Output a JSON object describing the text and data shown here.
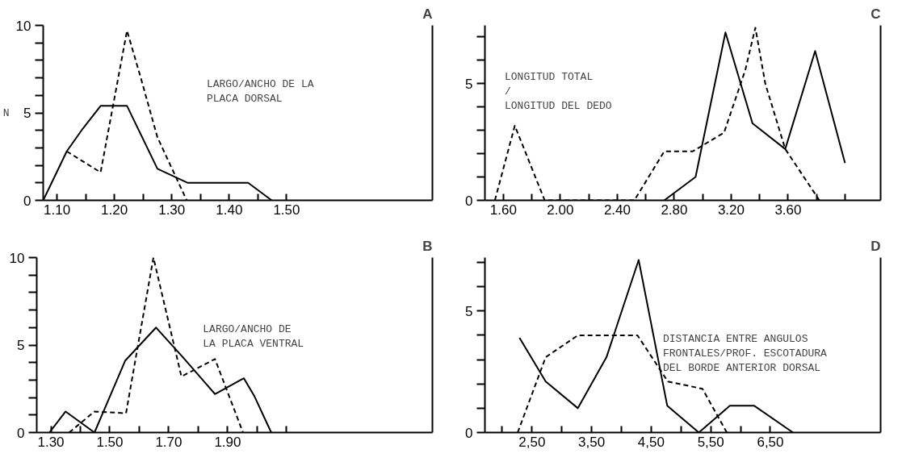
{
  "chart_data": [
    {
      "type": "line",
      "title": "A",
      "ylabel": "N",
      "annotations": [
        "LARGO/ANCHO DE LA\nPLACA DORSAL"
      ],
      "xlim": [
        1.076,
        1.754
      ],
      "ylim": [
        0,
        10
      ],
      "xticks": [
        {
          "value": 1.1,
          "label": "1.10"
        },
        {
          "value": 1.15,
          "label": null
        },
        {
          "value": 1.2,
          "label": "1.20"
        },
        {
          "value": 1.25,
          "label": null
        },
        {
          "value": 1.3,
          "label": "1.30"
        },
        {
          "value": 1.35,
          "label": null
        },
        {
          "value": 1.4,
          "label": "1.40"
        },
        {
          "value": 1.45,
          "label": null
        },
        {
          "value": 1.5,
          "label": "1.50"
        }
      ],
      "yticks": [
        0,
        {
          "value": 1,
          "label": null
        },
        {
          "value": 2,
          "label": null
        },
        {
          "value": 3,
          "label": null
        },
        {
          "value": 4,
          "label": null
        },
        5,
        {
          "value": 6,
          "label": null
        },
        {
          "value": 7,
          "label": null
        },
        {
          "value": 8,
          "label": null
        },
        {
          "value": 9,
          "label": null
        },
        10
      ],
      "grid": false,
      "series": [
        {
          "color": "#000000",
          "line_style": "solid",
          "x": [
            1.076,
            1.117,
            1.145,
            1.176,
            1.222,
            1.275,
            1.328,
            1.433,
            1.474
          ],
          "values": [
            0,
            2.8,
            4.1,
            5.4,
            5.4,
            1.8,
            1.0,
            1.0,
            0
          ]
        },
        {
          "color": "#000000",
          "line_style": "dashed",
          "x": [
            1.117,
            1.176,
            1.222,
            1.246,
            1.275,
            1.326
          ],
          "values": [
            2.8,
            1.6,
            9.7,
            7.0,
            3.6,
            0
          ]
        }
      ]
    },
    {
      "type": "line",
      "title": "C",
      "annotations": [
        "LONGITUD TOTAL\n/\nLONGITUD DEL DEDO"
      ],
      "xlim": [
        1.47,
        4.25
      ],
      "ylim": [
        0,
        7.5
      ],
      "xticks": [
        {
          "value": 1.6,
          "label": "1.60"
        },
        {
          "value": 1.8,
          "label": null
        },
        {
          "value": 2.0,
          "label": "2.00"
        },
        {
          "value": 2.2,
          "label": null
        },
        {
          "value": 2.4,
          "label": "2.40"
        },
        {
          "value": 2.6,
          "label": null
        },
        {
          "value": 2.8,
          "label": "2.80"
        },
        {
          "value": 3.0,
          "label": null
        },
        {
          "value": 3.2,
          "label": "3.20"
        },
        {
          "value": 3.4,
          "label": null
        },
        {
          "value": 3.6,
          "label": "3.60"
        },
        {
          "value": 3.8,
          "label": null
        },
        {
          "value": 4.0,
          "label": null
        }
      ],
      "yticks": [
        0,
        {
          "value": 1,
          "label": null
        },
        {
          "value": 2,
          "label": null
        },
        {
          "value": 3,
          "label": null
        },
        {
          "value": 4,
          "label": null
        },
        5,
        {
          "value": 6,
          "label": null
        },
        {
          "value": 7,
          "label": null
        }
      ],
      "grid": false,
      "series": [
        {
          "color": "#000000",
          "line_style": "solid",
          "x": [
            2.73,
            2.95,
            3.16,
            3.35,
            3.58,
            3.79,
            4.0
          ],
          "values": [
            0,
            1.0,
            7.2,
            3.3,
            2.2,
            6.4,
            1.6
          ]
        },
        {
          "color": "#000000",
          "line_style": "dashed",
          "x": [
            1.54,
            1.68,
            1.89,
            2.52,
            2.73,
            2.93,
            3.15,
            3.3,
            3.37,
            3.44,
            3.58,
            3.82
          ],
          "values": [
            0,
            3.2,
            0,
            0,
            2.1,
            2.1,
            2.9,
            5.6,
            7.4,
            5.0,
            2.2,
            0
          ]
        }
      ]
    },
    {
      "type": "line",
      "title": "B",
      "annotations": [
        "LARGO/ANCHO DE\nLA PLACA VENTRAL"
      ],
      "xlim": [
        1.252,
        2.595
      ],
      "ylim": [
        0,
        10
      ],
      "xticks": [
        {
          "value": 1.3,
          "label": "1.30"
        },
        {
          "value": 1.4,
          "label": null
        },
        {
          "value": 1.5,
          "label": "1.50"
        },
        {
          "value": 1.6,
          "label": null
        },
        {
          "value": 1.7,
          "label": "1.70"
        },
        {
          "value": 1.8,
          "label": null
        },
        {
          "value": 1.9,
          "label": "1.90"
        },
        {
          "value": 2.0,
          "label": null
        },
        {
          "value": 2.1,
          "label": null
        }
      ],
      "yticks": [
        0,
        {
          "value": 1,
          "label": null
        },
        {
          "value": 2,
          "label": null
        },
        {
          "value": 3,
          "label": null
        },
        {
          "value": 4,
          "label": null
        },
        5,
        {
          "value": 6,
          "label": null
        },
        {
          "value": 7,
          "label": null
        },
        {
          "value": 8,
          "label": null
        },
        {
          "value": 9,
          "label": null
        },
        10
      ],
      "grid": false,
      "series": [
        {
          "color": "#000000",
          "line_style": "solid",
          "x": [
            1.295,
            1.35,
            1.448,
            1.552,
            1.657,
            1.748,
            1.857,
            1.955,
            1.99,
            2.048
          ],
          "values": [
            0,
            1.2,
            0,
            4.1,
            6.0,
            4.3,
            2.2,
            3.1,
            2.1,
            0
          ]
        },
        {
          "color": "#000000",
          "line_style": "dashed",
          "x": [
            1.362,
            1.448,
            1.555,
            1.648,
            1.743,
            1.857,
            1.952
          ],
          "values": [
            0,
            1.2,
            1.1,
            10.0,
            3.2,
            4.2,
            0
          ]
        }
      ]
    },
    {
      "type": "line",
      "title": "D",
      "annotations": [
        "DISTANCIA ENTRE ANGULOS\nFRONTALES/PROF. ESCOTADURA\nDEL BORDE ANTERIOR DORSAL"
      ],
      "xlim": [
        1.71,
        8.35
      ],
      "ylim": [
        0,
        7.2
      ],
      "xticks": [
        {
          "value": 2.0,
          "label": null
        },
        {
          "value": 2.5,
          "label": "2,50"
        },
        {
          "value": 3.0,
          "label": null
        },
        {
          "value": 3.5,
          "label": "3,50"
        },
        {
          "value": 4.0,
          "label": null
        },
        {
          "value": 4.5,
          "label": "4,50"
        },
        {
          "value": 5.0,
          "label": null
        },
        {
          "value": 5.5,
          "label": "5,50"
        },
        {
          "value": 6.0,
          "label": null
        },
        {
          "value": 6.5,
          "label": "6,50"
        }
      ],
      "yticks": [
        0,
        {
          "value": 1,
          "label": null
        },
        {
          "value": 2,
          "label": null
        },
        {
          "value": 3,
          "label": null
        },
        {
          "value": 4,
          "label": null
        },
        5,
        {
          "value": 6,
          "label": null
        },
        {
          "value": 7,
          "label": null
        }
      ],
      "grid": false,
      "series": [
        {
          "color": "#000000",
          "line_style": "solid",
          "x": [
            2.29,
            2.73,
            3.27,
            3.75,
            4.29,
            4.77,
            5.3,
            5.82,
            6.23,
            6.88
          ],
          "values": [
            3.9,
            2.1,
            1.0,
            3.1,
            7.1,
            1.1,
            0,
            1.1,
            1.1,
            0
          ]
        },
        {
          "color": "#000000",
          "line_style": "dashed",
          "x": [
            2.26,
            2.73,
            3.27,
            4.27,
            4.78,
            5.36,
            5.77
          ],
          "values": [
            0,
            3.1,
            4.0,
            4.0,
            2.1,
            1.8,
            0
          ]
        }
      ]
    }
  ]
}
